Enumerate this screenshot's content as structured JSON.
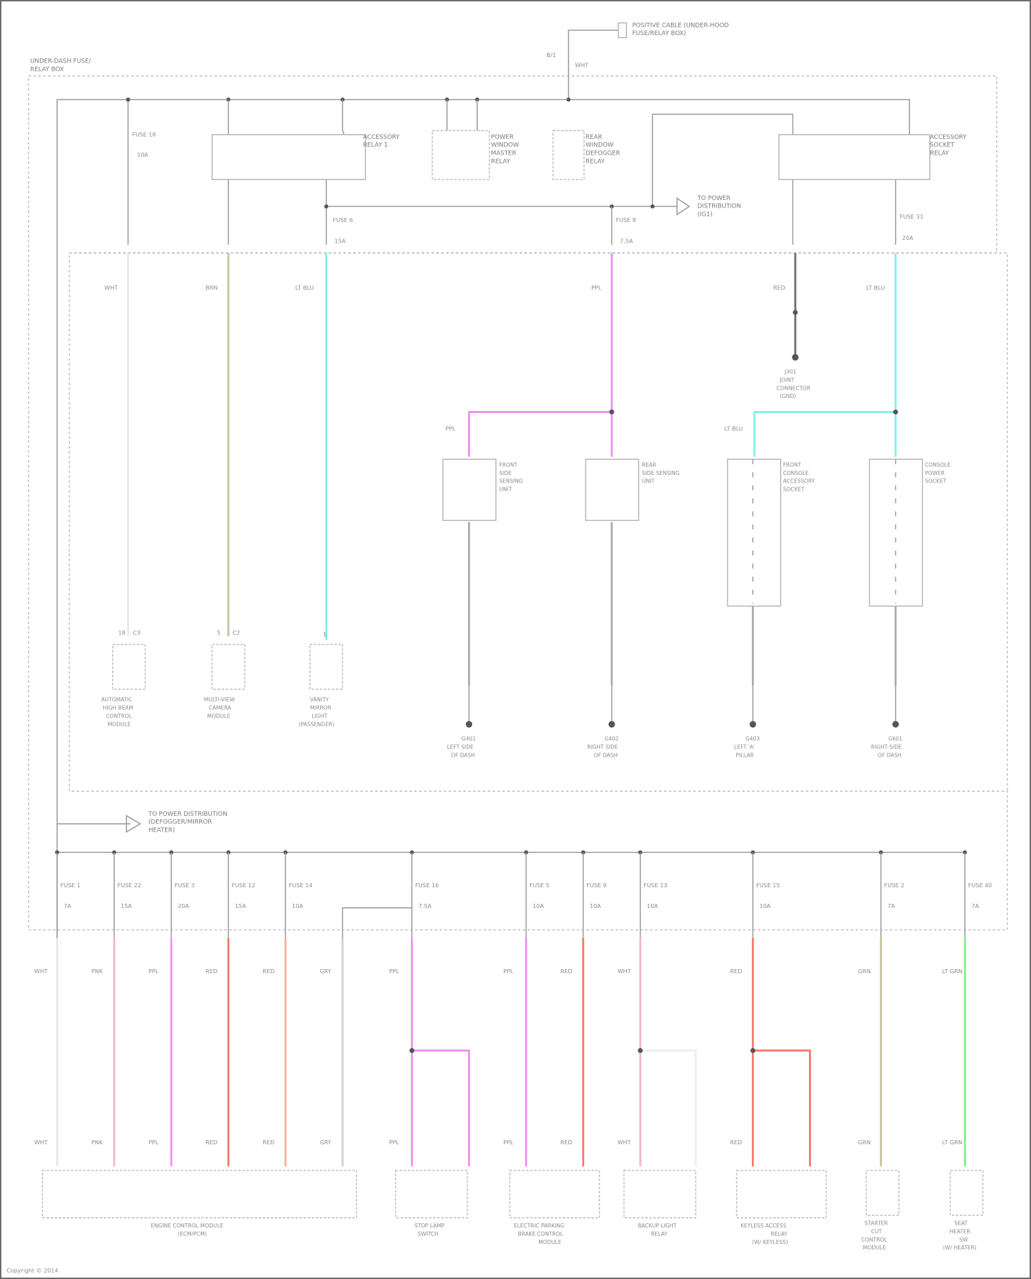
{
  "fuse_box_label": [
    "UNDER-DASH FUSE/",
    "RELAY BOX"
  ],
  "battery_label": [
    "POSITIVE CABLE (UNDER-HOOD",
    "FUSE/RELAY BOX)"
  ],
  "top_components": {
    "fuse_top": "FUSE 18",
    "fuse_top_rating": "10A",
    "relay_1": [
      "ACCESSORY",
      "RELAY 1"
    ],
    "relay_2": [
      "POWER",
      "WINDOW",
      "MASTER",
      "RELAY"
    ],
    "relay_3": [
      "REAR",
      "WINDOW",
      "DEFOGGER",
      "RELAY"
    ],
    "relay_4": [
      "ACCESSORY",
      "SOCKET",
      "RELAY"
    ],
    "ign_label": [
      "TO POWER",
      "DISTRIBUTION",
      "(IG1)"
    ],
    "fuse_a": "FUSE 6",
    "fuse_a_rating": "15A",
    "fuse_b": "FUSE 8",
    "fuse_b_rating": "7.5A",
    "fuse_c": "FUSE 31",
    "fuse_c_rating": "20A"
  },
  "wire_colors": {
    "white": "#e6e6e6",
    "pink": "#f6b8c4",
    "magenta": "#f08ef0",
    "red": "#f27a6a",
    "salmon": "#f4b0a0",
    "gray": "#d0d0d0",
    "olive": "#c8c39a",
    "cyan": "#7ff0f0",
    "green": "#7cf07c",
    "dark": "#6a6a6a"
  },
  "upper_loads": [
    {
      "wire": "WHT",
      "pin": "18",
      "conn": "C3",
      "name": [
        "AUTOMATIC",
        "HIGH BEAM",
        "CONTROL",
        "MODULE"
      ]
    },
    {
      "wire": "BRN",
      "pin": "5",
      "conn": "C2",
      "name": [
        "MULTI-VIEW",
        "CAMERA",
        "MODULE"
      ]
    },
    {
      "wire": "LT BLU",
      "pin": "1",
      "conn": "",
      "name": [
        "VANITY",
        "MIRROR",
        "LIGHT",
        "(PASSENGER)"
      ]
    },
    {
      "wire": "RED",
      "name": [
        "FRONT",
        "SIDE",
        "SENSING",
        "UNIT"
      ]
    },
    {
      "wire": "PPL",
      "name": [
        "REAR",
        "SIDE SENSING",
        "UNIT"
      ]
    },
    {
      "wire": "LT BLU",
      "name": [
        "FRONT",
        "CONSOLE",
        "ACCESSORY",
        "SOCKET"
      ]
    },
    {
      "wire": "LT BLU",
      "name": [
        "CONSOLE",
        "POWER",
        "SOCKET"
      ]
    }
  ],
  "grounds": [
    {
      "id": "G401",
      "name": [
        "LEFT SIDE",
        "OF DASH"
      ]
    },
    {
      "id": "G402",
      "name": [
        "RIGHT SIDE",
        "OF DASH"
      ]
    },
    {
      "id": "G403",
      "name": [
        "LEFT 'A'",
        "PILLAR"
      ]
    },
    {
      "id": "G601",
      "name": [
        "RIGHT SIDE",
        "OF DASH"
      ]
    }
  ],
  "splice": {
    "id": "J301",
    "name": [
      "JOINT",
      "CONNECTOR",
      "(GND)"
    ]
  },
  "mid_label": [
    "TO POWER DISTRIBUTION",
    "(DEFOGGER/MIRROR",
    "HEATER)"
  ],
  "lower_fuses": [
    {
      "fuse": "FUSE 1",
      "rating": "7A",
      "wire": "WHT"
    },
    {
      "fuse": "FUSE 22",
      "rating": "15A",
      "wire": "PNK"
    },
    {
      "fuse": "FUSE 3",
      "rating": "20A",
      "wire": "PPL"
    },
    {
      "fuse": "FUSE 12",
      "rating": "15A",
      "wire": "RED"
    },
    {
      "fuse": "FUSE 14",
      "rating": "10A",
      "wire": "RED"
    },
    {
      "fuse": "",
      "rating": "",
      "wire": "GRY"
    },
    {
      "fuse": "FUSE 16",
      "rating": "7.5A",
      "wire": "PPL"
    },
    {
      "fuse": "FUSE 5",
      "rating": "10A",
      "wire": "PPL"
    },
    {
      "fuse": "FUSE 9",
      "rating": "10A",
      "wire": "RED"
    },
    {
      "fuse": "FUSE 13",
      "rating": "10A",
      "wire": "WHT"
    },
    {
      "fuse": "FUSE 15",
      "rating": "10A",
      "wire": "RED"
    },
    {
      "fuse": "FUSE 2",
      "rating": "7A",
      "wire": "GRN"
    },
    {
      "fuse": "FUSE 40",
      "rating": "7A",
      "wire": "LT GRN"
    }
  ],
  "lower_components": [
    {
      "name": [
        "ENGINE CONTROL MODULE",
        "(ECM/PCM)"
      ]
    },
    {
      "name": [
        "STOP LAMP",
        "SWITCH"
      ]
    },
    {
      "name": [
        "ELECTRIC PARKING",
        "BRAKE CONTROL",
        "MODULE"
      ]
    },
    {
      "name": [
        "BACKUP LIGHT",
        "RELAY"
      ]
    },
    {
      "name": [
        "KEYLESS ACCESS",
        "RELAY",
        "(W/ KEYLESS)"
      ]
    },
    {
      "name": [
        "STARTER",
        "CUT",
        "CONTROL",
        "MODULE"
      ]
    },
    {
      "name": [
        "SEAT",
        "HEATER",
        "SW",
        "(W/ HEATER)"
      ]
    }
  ],
  "footer": "Copyright © 2014"
}
